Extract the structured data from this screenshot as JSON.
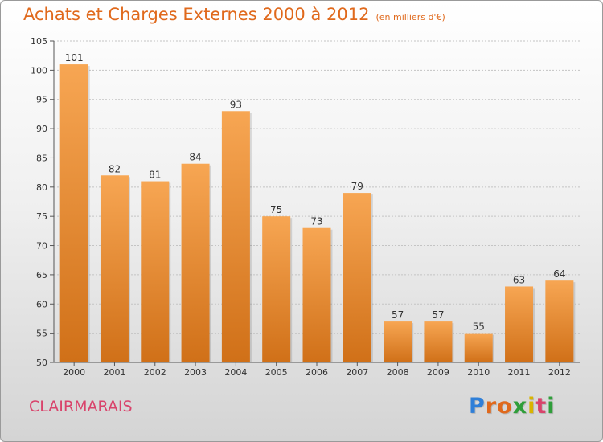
{
  "header": {
    "title": "Achats et Charges Externes 2000 à 2012",
    "unit": "(en milliers d'€)"
  },
  "footer": {
    "town": "CLAIRMARAIS",
    "brand": "Proxiti"
  },
  "colors": {
    "title": "#e0691c",
    "bar_light": "#f7a653",
    "bar_dark": "#d07018",
    "town": "#d9436b",
    "brand_letters": [
      "#2f7fd8",
      "#e0691c",
      "#e0691c",
      "#2f9e3a",
      "#d9b400",
      "#d9436b",
      "#2f9e3a"
    ]
  },
  "chart_data": {
    "type": "bar",
    "title": "Achats et Charges Externes 2000 à 2012",
    "subtitle": "(en milliers d'€)",
    "xlabel": "",
    "ylabel": "",
    "categories": [
      "2000",
      "2001",
      "2002",
      "2003",
      "2004",
      "2005",
      "2006",
      "2007",
      "2008",
      "2009",
      "2010",
      "2011",
      "2012"
    ],
    "values": [
      101,
      82,
      81,
      84,
      93,
      75,
      73,
      79,
      57,
      57,
      55,
      63,
      64
    ],
    "ylim": [
      50,
      105
    ],
    "yticks": [
      50,
      55,
      60,
      65,
      70,
      75,
      80,
      85,
      90,
      95,
      100,
      105
    ],
    "grid": true
  }
}
